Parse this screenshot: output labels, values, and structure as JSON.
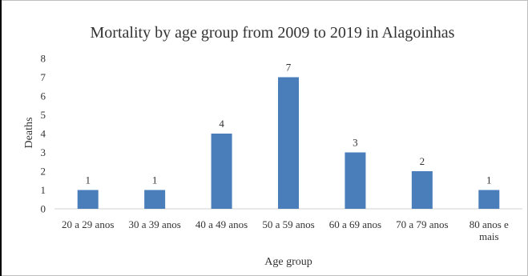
{
  "chart_data": {
    "type": "bar",
    "title": "Mortality by age group from 2009 to 2019 in Alagoinhas",
    "xlabel": "Age group",
    "ylabel": "Deaths",
    "ylim": [
      0,
      8
    ],
    "yticks": [
      "0",
      "1",
      "2",
      "3",
      "4",
      "5",
      "6",
      "7",
      "8"
    ],
    "grid": false,
    "legend": "none",
    "bar_color": "#4a7ebb",
    "categories": [
      [
        "20 a 29 anos"
      ],
      [
        "30 a 39 anos"
      ],
      [
        "40 a 49 anos"
      ],
      [
        "50 a 59 anos"
      ],
      [
        "60 a 69 anos"
      ],
      [
        "70 a 79 anos"
      ],
      [
        "80 anos e",
        "mais"
      ]
    ],
    "values": [
      1,
      1,
      4,
      7,
      3,
      2,
      1
    ]
  }
}
